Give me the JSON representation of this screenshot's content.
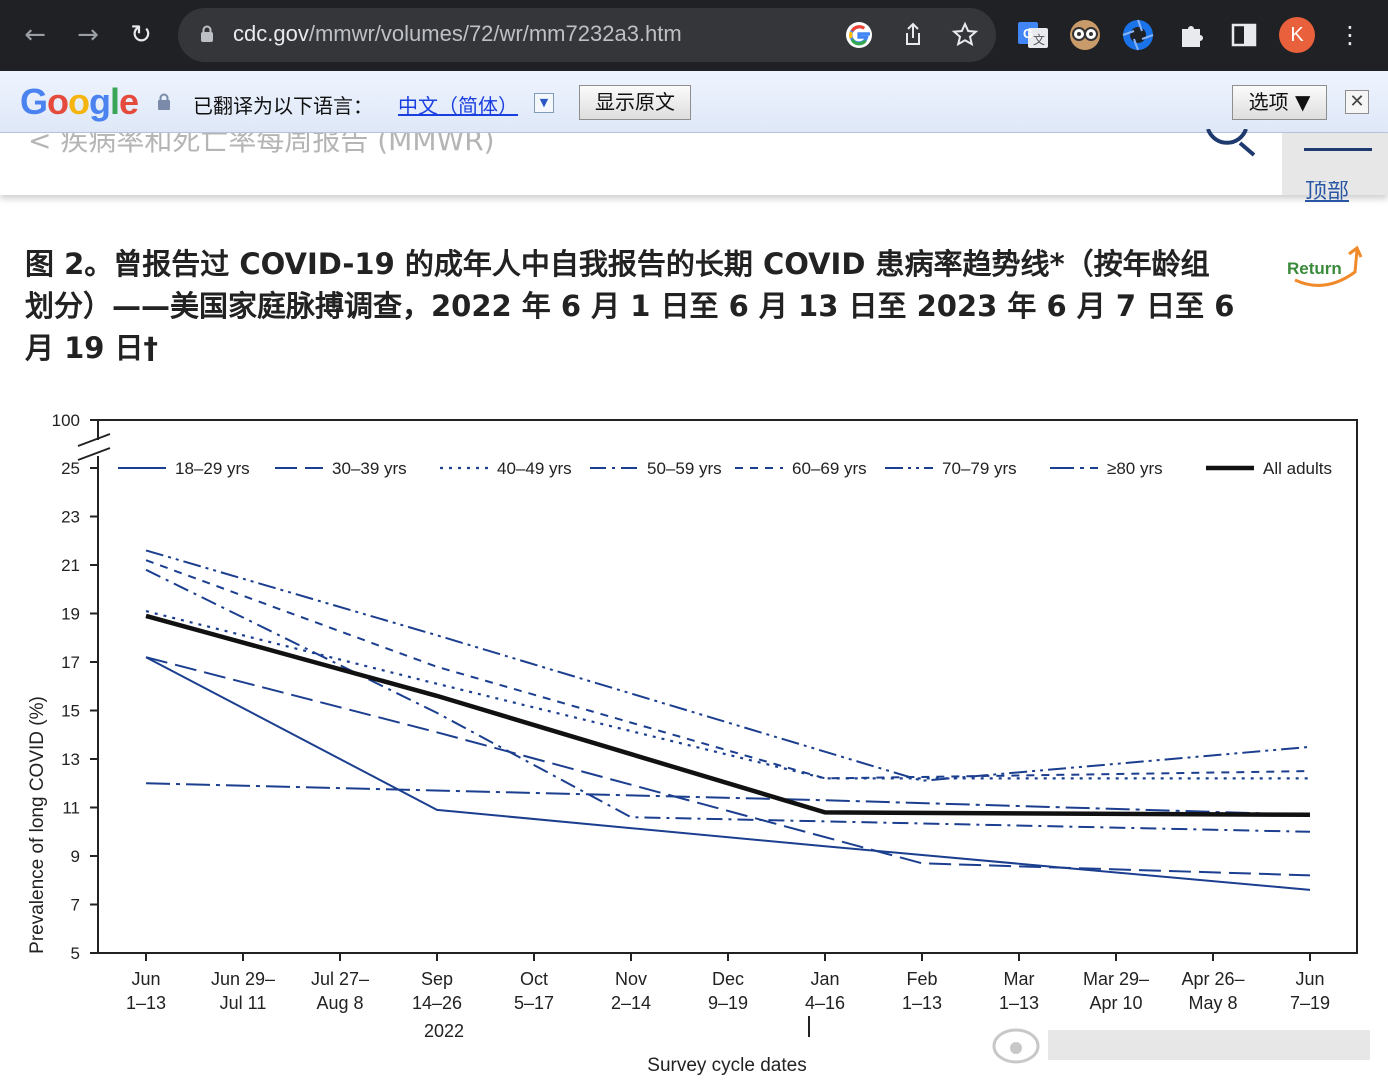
{
  "browser": {
    "url_domain": "cdc.gov",
    "url_path": "/mmwr/volumes/72/wr/mm7232a3.htm",
    "profile_initial": "K"
  },
  "translate_bar": {
    "logo": "Google",
    "label": "已翻译为以下语言：",
    "language": "中文（简体）",
    "show_original": "显示原文",
    "options": "选项 ▼",
    "close": "✕"
  },
  "site": {
    "breadcrumb": "< 疾病率和死亡率每周报告 (MMWR)",
    "top_link": "顶部"
  },
  "figure": {
    "title_line1": "图 2。曾报告过 COVID-19 的成年人中自我报告的长期 COVID 患病率趋势线*（按年龄组",
    "title_line2": "划分）——美国家庭脉搏调查，2022 年 6 月 1 日至 6 月 13 日至 2023 年 6 月 7 日至 6",
    "title_line3": "月 19 日†",
    "return_label": "Return"
  },
  "chart_data": {
    "type": "line",
    "ylabel": "Prevalence of long COVID (%)",
    "xlabel": "Survey cycle dates",
    "year_label": "2022",
    "ylim": [
      5,
      25
    ],
    "y_break_top": 100,
    "yticks": [
      5,
      7,
      9,
      11,
      13,
      15,
      17,
      19,
      21,
      23,
      25
    ],
    "categories": [
      [
        "Jun",
        "1–13"
      ],
      [
        "Jun 29–",
        "Jul 11"
      ],
      [
        "Jul 27–",
        "Aug 8"
      ],
      [
        "Sep",
        "14–26"
      ],
      [
        "Oct",
        "5–17"
      ],
      [
        "Nov",
        "2–14"
      ],
      [
        "Dec",
        "9–19"
      ],
      [
        "Jan",
        "4–16"
      ],
      [
        "Feb",
        "1–13"
      ],
      [
        "Mar",
        "1–13"
      ],
      [
        "Mar 29–",
        "Apr 10"
      ],
      [
        "Apr 26–",
        "May 8"
      ],
      [
        "Jun",
        "7–19"
      ]
    ],
    "series": [
      {
        "name": "18–29 yrs",
        "style": "solid",
        "points": [
          [
            0,
            17.2
          ],
          [
            3,
            10.9
          ],
          [
            7,
            9.4
          ],
          [
            12,
            7.6
          ]
        ]
      },
      {
        "name": "30–39 yrs",
        "style": "longdash",
        "points": [
          [
            0,
            17.2
          ],
          [
            3,
            14.1
          ],
          [
            8,
            8.7
          ],
          [
            12,
            8.2
          ]
        ]
      },
      {
        "name": "40–49 yrs",
        "style": "dot",
        "points": [
          [
            0,
            19.1
          ],
          [
            3,
            16.1
          ],
          [
            7,
            12.2
          ],
          [
            12,
            12.2
          ]
        ]
      },
      {
        "name": "50–59 yrs",
        "style": "dashdot",
        "points": [
          [
            0,
            20.8
          ],
          [
            3,
            14.9
          ],
          [
            5,
            10.6
          ],
          [
            12,
            10.0
          ]
        ]
      },
      {
        "name": "60–69 yrs",
        "style": "shortdash",
        "points": [
          [
            0,
            21.2
          ],
          [
            3,
            16.8
          ],
          [
            7,
            12.2
          ],
          [
            12,
            12.5
          ]
        ]
      },
      {
        "name": "70–79 yrs",
        "style": "dashdotdot",
        "points": [
          [
            0,
            21.6
          ],
          [
            3,
            18.1
          ],
          [
            8,
            12.1
          ],
          [
            12,
            13.5
          ]
        ]
      },
      {
        "name": "≥80 yrs",
        "style": "dashdot2",
        "points": [
          [
            0,
            12.0
          ],
          [
            7,
            11.3
          ],
          [
            12,
            10.7
          ]
        ]
      },
      {
        "name": "All adults",
        "style": "bold",
        "points": [
          [
            0,
            18.9
          ],
          [
            3,
            15.6
          ],
          [
            7,
            10.8
          ],
          [
            12,
            10.7
          ]
        ]
      }
    ],
    "colors": {
      "series": "#1b3e8f",
      "all_adults": "#111111"
    },
    "legend_position": "top",
    "grid": false
  }
}
